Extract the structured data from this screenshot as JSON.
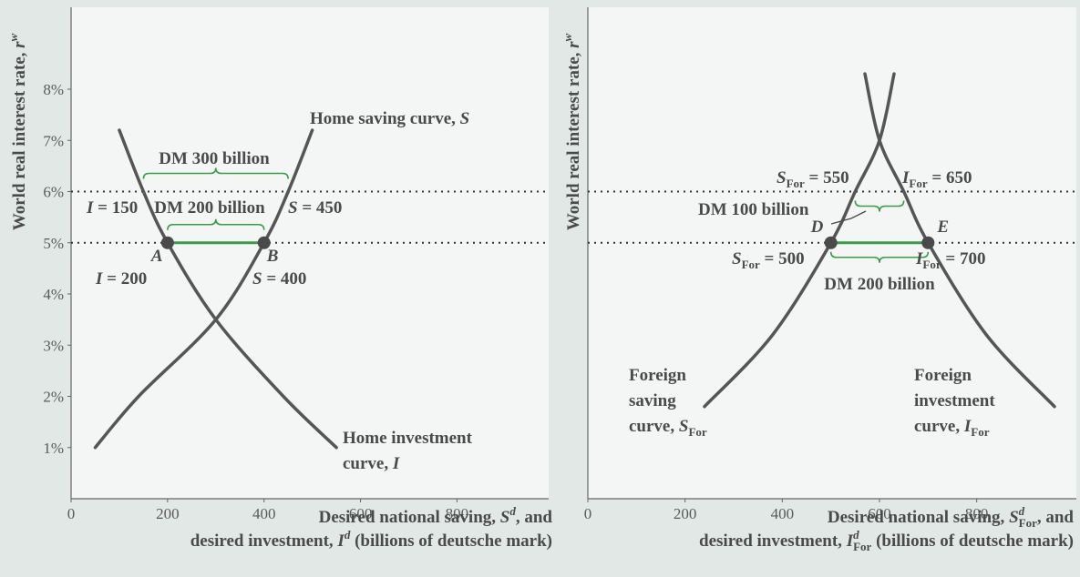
{
  "chart_data": [
    {
      "type": "line",
      "ylabel": [
        {
          "text": "World real interest rate, "
        },
        {
          "text": "r",
          "italic": true
        },
        {
          "text": "w",
          "italic": true,
          "script": "sup"
        }
      ],
      "xlabel": [
        [
          {
            "text": "Desired national saving, "
          },
          {
            "text": "S",
            "italic": true
          },
          {
            "text": "d",
            "italic": true,
            "script": "sup"
          },
          {
            "text": ", and"
          }
        ],
        [
          {
            "text": "desired investment, "
          },
          {
            "text": "I",
            "italic": true
          },
          {
            "text": "d",
            "italic": true,
            "script": "sup"
          },
          {
            "text": " (billions of deutsche mark)"
          }
        ]
      ],
      "xlim": [
        0,
        990
      ],
      "ylim": [
        0,
        9.6
      ],
      "xticks": [
        0,
        200,
        400,
        600,
        800
      ],
      "yticks": [
        {
          "value": 1,
          "label": "1%"
        },
        {
          "value": 2,
          "label": "2%"
        },
        {
          "value": 3,
          "label": "3%"
        },
        {
          "value": 4,
          "label": "4%"
        },
        {
          "value": 5,
          "label": "5%"
        },
        {
          "value": 6,
          "label": "6%"
        },
        {
          "value": 7,
          "label": "7%"
        },
        {
          "value": 8,
          "label": "8%"
        }
      ],
      "hlines": [
        6,
        5
      ],
      "series": [
        {
          "color": "#555555",
          "x": [
            50,
            140,
            300,
            400,
            450,
            500
          ],
          "values": [
            1,
            2,
            3.5,
            5,
            6,
            7.2
          ]
        },
        {
          "color": "#555555",
          "x": [
            100,
            150,
            200,
            300,
            440,
            550
          ],
          "values": [
            7.2,
            6,
            5,
            3.5,
            2,
            1
          ]
        }
      ],
      "points": [
        {
          "label": "A",
          "x": 200,
          "y": 5
        },
        {
          "label": "B",
          "x": 400,
          "y": 5
        }
      ],
      "gap_color": "#3d9a4a",
      "ranges": [
        {
          "x": [
            150,
            450
          ],
          "y": 6,
          "side": "above"
        },
        {
          "x": [
            200,
            400
          ],
          "y": 5,
          "side": "above"
        }
      ],
      "annotations": [
        [
          [
            {
              "text": "Home saving curve, "
            },
            {
              "text": "S",
              "italic": true
            }
          ]
        ],
        [
          [
            {
              "text": "DM 300 billion"
            }
          ]
        ],
        [
          [
            {
              "text": "I",
              "italic": true
            },
            {
              "text": " = 150"
            }
          ]
        ],
        [
          [
            {
              "text": "DM 200 billion"
            }
          ]
        ],
        [
          [
            {
              "text": "S",
              "italic": true
            },
            {
              "text": " = 450"
            }
          ]
        ],
        [
          [
            {
              "text": "I",
              "italic": true
            },
            {
              "text": " = 200"
            }
          ]
        ],
        [
          [
            {
              "text": "S",
              "italic": true
            },
            {
              "text": " = 400"
            }
          ]
        ],
        [
          [
            {
              "text": "Home investment"
            }
          ],
          [
            {
              "text": "curve, "
            },
            {
              "text": "I",
              "italic": true
            }
          ]
        ]
      ]
    },
    {
      "type": "line",
      "ylabel": [
        {
          "text": "World real interest rate, "
        },
        {
          "text": "r",
          "italic": true
        },
        {
          "text": "w",
          "italic": true,
          "script": "sup"
        }
      ],
      "xlabel": [
        [
          {
            "text": "Desired national saving, "
          },
          {
            "text": "S",
            "italic": true
          },
          {
            "text": "d",
            "italic": true,
            "script": "sup"
          },
          {
            "text": "For",
            "script": "sub"
          },
          {
            "text": ", and"
          }
        ],
        [
          {
            "text": "desired investment, "
          },
          {
            "text": "I",
            "italic": true
          },
          {
            "text": "d",
            "italic": true,
            "script": "sup"
          },
          {
            "text": "For",
            "script": "sub"
          },
          {
            "text": " (billions of deutsche mark)"
          }
        ]
      ],
      "xlim": [
        0,
        1005
      ],
      "ylim": [
        0,
        9.6
      ],
      "xticks": [
        0,
        200,
        400,
        600,
        800
      ],
      "hlines": [
        6,
        5
      ],
      "series": [
        {
          "color": "#555555",
          "x": [
            240,
            380,
            500,
            550,
            600,
            630
          ],
          "values": [
            1.8,
            3.2,
            5,
            6,
            7,
            8.3
          ]
        },
        {
          "color": "#555555",
          "x": [
            570,
            600,
            650,
            700,
            820,
            960
          ],
          "values": [
            8.3,
            7,
            6,
            5,
            3.2,
            1.8
          ]
        }
      ],
      "points": [
        {
          "label": "D",
          "x": 500,
          "y": 5
        },
        {
          "label": "E",
          "x": 700,
          "y": 5
        }
      ],
      "gap_color": "#3d9a4a",
      "ranges": [
        {
          "x": [
            550,
            650
          ],
          "y": 6,
          "side": "below"
        },
        {
          "x": [
            500,
            700
          ],
          "y": 5,
          "side": "below"
        }
      ],
      "annotations": [
        [
          [
            {
              "text": "S",
              "italic": true
            },
            {
              "text": "For",
              "script": "sub"
            },
            {
              "text": " = 550"
            }
          ]
        ],
        [
          [
            {
              "text": "I",
              "italic": true
            },
            {
              "text": "For",
              "script": "sub"
            },
            {
              "text": " = 650"
            }
          ]
        ],
        [
          [
            {
              "text": "DM 100 billion"
            }
          ]
        ],
        [
          [
            {
              "text": "S",
              "italic": true
            },
            {
              "text": "For",
              "script": "sub"
            },
            {
              "text": " = 500"
            }
          ]
        ],
        [
          [
            {
              "text": "I",
              "italic": true
            },
            {
              "text": "For",
              "script": "sub"
            },
            {
              "text": " = 700"
            }
          ]
        ],
        [
          [
            {
              "text": "DM 200 billion"
            }
          ]
        ],
        [
          [
            {
              "text": "Foreign"
            }
          ],
          [
            {
              "text": "saving"
            }
          ],
          [
            {
              "text": "curve, "
            },
            {
              "text": "S",
              "italic": true
            },
            {
              "text": "For",
              "script": "sub"
            }
          ]
        ],
        [
          [
            {
              "text": "Foreign"
            }
          ],
          [
            {
              "text": "investment"
            }
          ],
          [
            {
              "text": "curve, "
            },
            {
              "text": "I",
              "italic": true
            },
            {
              "text": "For",
              "script": "sub"
            }
          ]
        ]
      ]
    }
  ]
}
